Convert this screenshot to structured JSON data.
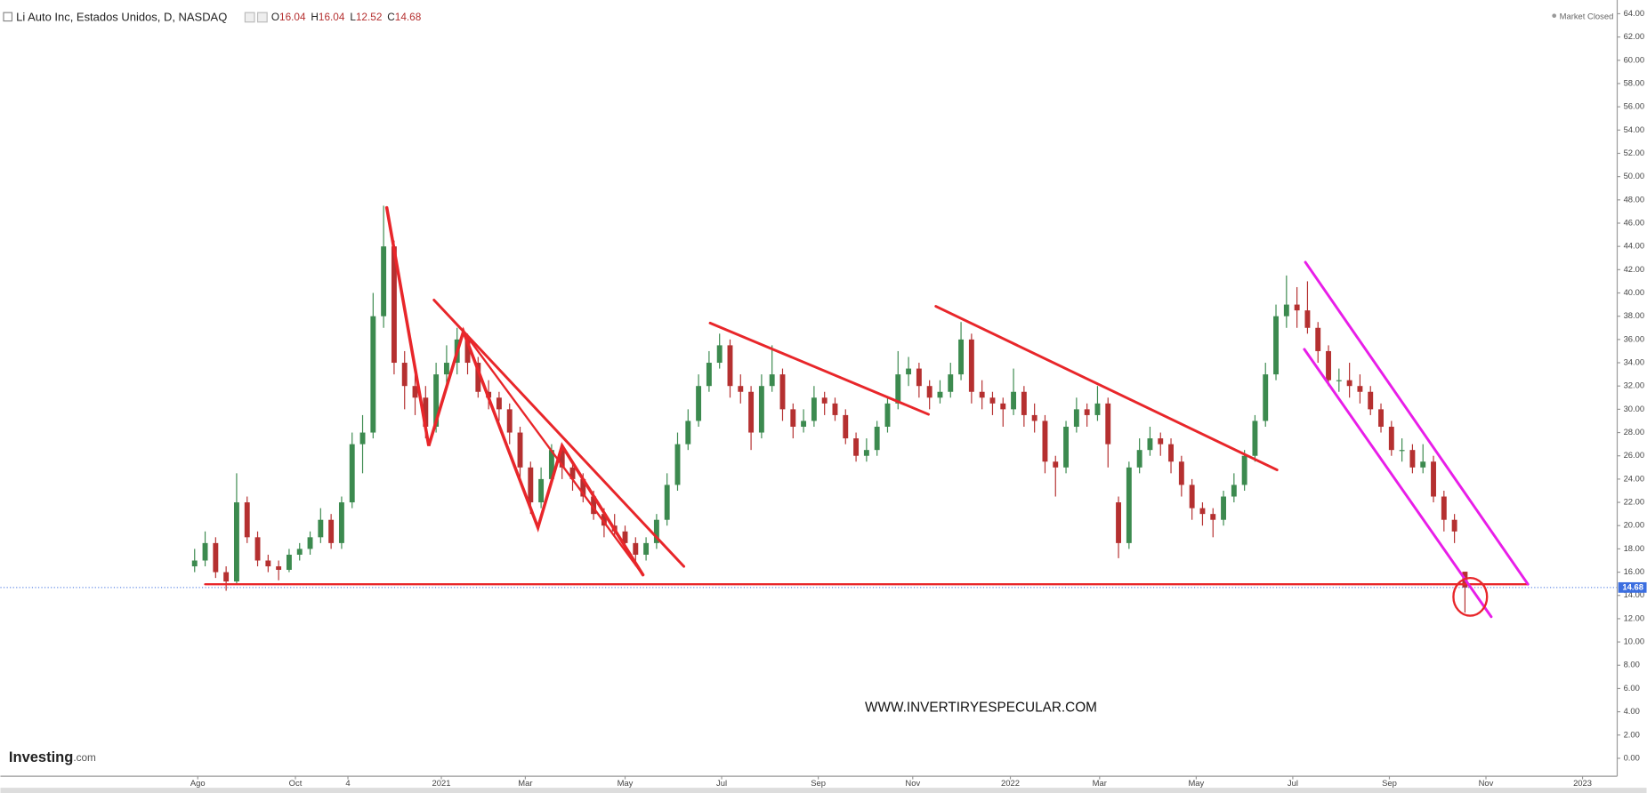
{
  "header": {
    "title": "Li Auto Inc, Estados Unidos, D, NASDAQ",
    "ohlc_labels": [
      "O",
      "H",
      "L",
      "C"
    ],
    "status": "Market Closed"
  },
  "logo": {
    "name": "Investing",
    "suffix": ".com"
  },
  "chart_data": {
    "type": "candlestick",
    "annotation": "WWW.INVERTIRYESPECULAR.COM",
    "up_color": "#3c8a4f",
    "down_color": "#b53030",
    "open": [
      16.5,
      17,
      18.5,
      16,
      15.2,
      22,
      19,
      17,
      16.5,
      16.2,
      17.5,
      18,
      19,
      20.5,
      18.5,
      22,
      27,
      28,
      38,
      44,
      34,
      32,
      31,
      28.5,
      33,
      34,
      36,
      34,
      31.5,
      31,
      30,
      28,
      25,
      22,
      24,
      26.5,
      25,
      24,
      22.5,
      21,
      20,
      19.5,
      18.5,
      17.5,
      18.5,
      20.5,
      23.5,
      27,
      29,
      32,
      34,
      35.5,
      32,
      31.5,
      28,
      32,
      33,
      30,
      28.5,
      29,
      31,
      30.5,
      29.5,
      27.5,
      26,
      26.5,
      28.5,
      30.5,
      33,
      33.5,
      32,
      31,
      31.5,
      33,
      36,
      31.5,
      31,
      30.5,
      30,
      31.5,
      29.5,
      29,
      25.5,
      25,
      28.5,
      30,
      29.5,
      30.5,
      22,
      18.5,
      25,
      26.5,
      27.5,
      27,
      25.5,
      23.5,
      21.5,
      21,
      20.5,
      22.5,
      23.5,
      26,
      29,
      33,
      38,
      39,
      38.5,
      37,
      35,
      32.5,
      32.5,
      32,
      31.5,
      30,
      28.5,
      26.5,
      26.5,
      25,
      25.5,
      22.5,
      20.5,
      16.04
    ],
    "high": [
      18,
      19.5,
      19,
      16.5,
      24.5,
      22.5,
      19.5,
      17.5,
      17,
      18,
      18.5,
      19.5,
      21.5,
      21,
      22.5,
      28,
      29.5,
      40,
      47.5,
      44.5,
      35,
      33,
      32,
      34,
      35.5,
      37,
      36.5,
      34.5,
      32.5,
      31.5,
      30.5,
      28.5,
      25.5,
      25,
      27,
      27,
      25.5,
      24.5,
      23,
      21.5,
      21,
      20,
      19,
      19,
      21,
      24.5,
      28,
      30,
      33,
      35,
      36.5,
      36,
      33,
      32,
      33,
      35.5,
      33.5,
      30.5,
      30,
      32,
      31.5,
      31,
      30,
      28,
      27.5,
      29,
      31,
      35,
      34.5,
      34,
      32.5,
      32.5,
      34,
      37.5,
      36.5,
      32.5,
      31.5,
      31,
      33.5,
      32,
      30.5,
      29.5,
      26,
      29,
      31,
      30.5,
      32,
      31,
      22.5,
      25.5,
      27.5,
      28.5,
      28,
      27.5,
      26,
      24,
      22,
      21.5,
      23,
      24.5,
      26.5,
      29.5,
      34,
      39,
      41.5,
      40.5,
      41,
      37.5,
      35.5,
      33.5,
      34,
      33,
      32,
      30.5,
      29,
      27.5,
      27,
      27,
      26,
      23,
      21,
      16.04
    ],
    "low": [
      16,
      16.5,
      15.5,
      14.4,
      15,
      18.5,
      16.5,
      16,
      15.3,
      16,
      17,
      17.5,
      18.5,
      18,
      18,
      21.5,
      24.5,
      27.5,
      37,
      33,
      30,
      29.5,
      27.5,
      28,
      32,
      33,
      33,
      31,
      30,
      29,
      27,
      24,
      21,
      21.5,
      23.5,
      24,
      23,
      22,
      20.5,
      19,
      19,
      18,
      16.5,
      17,
      18,
      20,
      23,
      26.5,
      28.5,
      31.5,
      33.5,
      31,
      30.5,
      26.5,
      27.5,
      31.5,
      29,
      27.5,
      28,
      28.5,
      29.5,
      29,
      27,
      25.5,
      25.5,
      26,
      28,
      30,
      32,
      31,
      30,
      30.5,
      31,
      32.5,
      30.5,
      30,
      29.5,
      28.5,
      29.5,
      28.5,
      28,
      24.5,
      22.5,
      24.5,
      28,
      28.5,
      29,
      25,
      17.2,
      18,
      24.5,
      26,
      26,
      24.5,
      22.5,
      20.5,
      20,
      19,
      20,
      22,
      23,
      25.5,
      28.5,
      32.5,
      37,
      37,
      36.5,
      34,
      32,
      31.5,
      31,
      30.5,
      29.5,
      28,
      26,
      25.5,
      24.5,
      24.5,
      22,
      19.5,
      18.5,
      12.52
    ],
    "close": [
      17,
      18.5,
      16,
      15.2,
      22,
      19,
      17,
      16.5,
      16.2,
      17.5,
      18,
      19,
      20.5,
      18.5,
      22,
      27,
      28,
      38,
      44,
      34,
      32,
      31,
      28.5,
      33,
      34,
      36,
      34,
      31.5,
      31,
      30,
      28,
      25,
      22,
      24,
      26.5,
      25,
      24,
      22.5,
      21,
      20,
      19.5,
      18.5,
      17.5,
      18.5,
      20.5,
      23.5,
      27,
      29,
      32,
      34,
      35.5,
      32,
      31.5,
      28,
      32,
      33,
      30,
      28.5,
      29,
      31,
      30.5,
      29.5,
      27.5,
      26,
      26.5,
      28.5,
      30.5,
      33,
      33.5,
      32,
      31,
      31.5,
      33,
      36,
      31.5,
      31,
      30.5,
      30,
      31.5,
      29.5,
      29,
      25.5,
      25,
      28.5,
      30,
      29.5,
      30.5,
      27,
      18.5,
      25,
      26.5,
      27.5,
      27,
      25.5,
      23.5,
      21.5,
      21,
      20.5,
      22.5,
      23.5,
      26,
      29,
      33,
      38,
      39,
      38.5,
      37,
      35,
      32.5,
      32.5,
      32,
      31.5,
      30,
      28.5,
      26.5,
      26.5,
      25,
      25.5,
      22.5,
      20.5,
      19.5,
      14.68
    ],
    "xlim": [
      -18.5,
      135.5
    ],
    "xticks": [
      {
        "value": 0.3,
        "label": "Ago"
      },
      {
        "value": 9.6,
        "label": "Oct"
      },
      {
        "value": 14.6,
        "label": "4"
      },
      {
        "value": 23.5,
        "label": "2021"
      },
      {
        "value": 31.5,
        "label": "Mar"
      },
      {
        "value": 41,
        "label": "May"
      },
      {
        "value": 50.2,
        "label": "Jul"
      },
      {
        "value": 59.4,
        "label": "Sep"
      },
      {
        "value": 68.4,
        "label": "Nov"
      },
      {
        "value": 77.7,
        "label": "2022"
      },
      {
        "value": 86.2,
        "label": "Mar"
      },
      {
        "value": 95.4,
        "label": "May"
      },
      {
        "value": 104.6,
        "label": "Jul"
      },
      {
        "value": 113.8,
        "label": "Sep"
      },
      {
        "value": 123,
        "label": "Nov"
      },
      {
        "value": 132.2,
        "label": "2023"
      }
    ],
    "ylim": [
      -1.54,
      65.18
    ],
    "yticks": [
      {
        "value": 0,
        "label": "0.00"
      },
      {
        "value": 2,
        "label": "2.00"
      },
      {
        "value": 4,
        "label": "4.00"
      },
      {
        "value": 6,
        "label": "6.00"
      },
      {
        "value": 8,
        "label": "8.00"
      },
      {
        "value": 10,
        "label": "10.00"
      },
      {
        "value": 12,
        "label": "12.00"
      },
      {
        "value": 14,
        "label": "14.00"
      },
      {
        "value": 16,
        "label": "16.00"
      },
      {
        "value": 18,
        "label": "18.00"
      },
      {
        "value": 20,
        "label": "20.00"
      },
      {
        "value": 22,
        "label": "22.00"
      },
      {
        "value": 24,
        "label": "24.00"
      },
      {
        "value": 26,
        "label": "26.00"
      },
      {
        "value": 28,
        "label": "28.00"
      },
      {
        "value": 30,
        "label": "30.00"
      },
      {
        "value": 32,
        "label": "32.00"
      },
      {
        "value": 34,
        "label": "34.00"
      },
      {
        "value": 36,
        "label": "36.00"
      },
      {
        "value": 38,
        "label": "38.00"
      },
      {
        "value": 40,
        "label": "40.00"
      },
      {
        "value": 42,
        "label": "42.00"
      },
      {
        "value": 44,
        "label": "44.00"
      },
      {
        "value": 46,
        "label": "46.00"
      },
      {
        "value": 48,
        "label": "48.00"
      },
      {
        "value": 50,
        "label": "50.00"
      },
      {
        "value": 52,
        "label": "52.00"
      },
      {
        "value": 54,
        "label": "54.00"
      },
      {
        "value": 56,
        "label": "56.00"
      },
      {
        "value": 58,
        "label": "58.00"
      },
      {
        "value": 60,
        "label": "60.00"
      },
      {
        "value": 62,
        "label": "62.00"
      },
      {
        "value": 64,
        "label": "64.00"
      }
    ]
  }
}
